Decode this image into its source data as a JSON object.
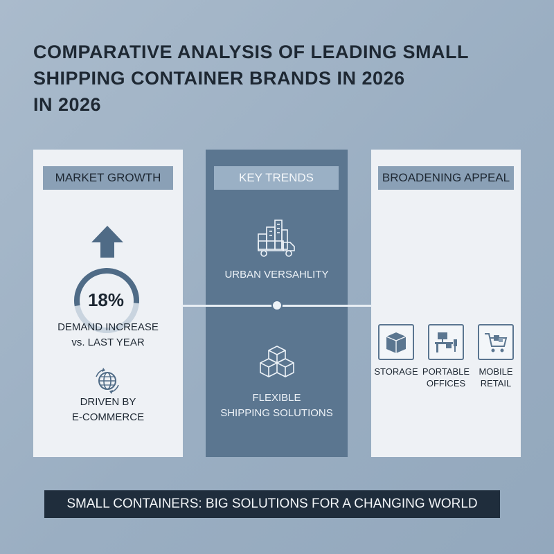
{
  "title": {
    "line1": "COMPARATIVE ANALYSIS OF LEADING SMALL",
    "line2": "SHIPPING CONTAINER BRANDS IN 2026",
    "line3": "IN 2026"
  },
  "colors": {
    "background": "#9fb1c3",
    "panel_light": "#eef1f5",
    "panel_dark": "#5b7690",
    "banner": "#1f2d3c",
    "text_dark": "#1e2833"
  },
  "market_growth": {
    "heading": "MARKET GROWTH",
    "arrow_icon": "up-arrow-icon",
    "percent_value": 18,
    "percent_label": "18%",
    "caption_line1": "DEMAND INCREASE",
    "caption_line2": "vs. LAST YEAR",
    "globe_icon": "globe-icon",
    "driver_line1": "DRIVEN BY",
    "driver_line2": "E-COMMERCE"
  },
  "key_trends": {
    "heading": "KEY TRENDS",
    "trend1_icon": "city-truck-icon",
    "trend1_label": "URBAN VERSAHLITY",
    "trend2_icon": "stacked-boxes-icon",
    "trend2_line1": "FLEXIBLE",
    "trend2_line2": "SHIPPING SOLUTIONS"
  },
  "broadening_appeal": {
    "heading": "BROADENING APPEAL",
    "items": [
      {
        "icon": "storage-box-icon",
        "line1": "STORAGE",
        "line2": ""
      },
      {
        "icon": "office-desk-icon",
        "line1": "PORTABLE",
        "line2": "OFFICES"
      },
      {
        "icon": "shopping-cart-icon",
        "line1": "MOBILE",
        "line2": "RETAIL"
      }
    ]
  },
  "banner": {
    "text": "SMALL CONTAINERS: BIG SOLUTIONS FOR A CHANGING WORLD"
  }
}
